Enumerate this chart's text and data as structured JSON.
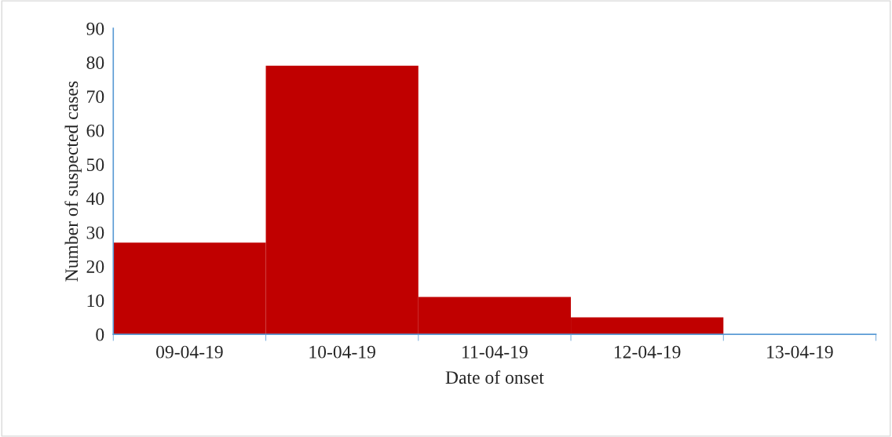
{
  "chart_data": {
    "type": "bar",
    "xlabel": "Date of onset",
    "ylabel": "Number of suspected cases",
    "categories": [
      "09-04-19",
      "10-04-19",
      "11-04-19",
      "12-04-19",
      "13-04-19"
    ],
    "values": [
      27,
      79,
      11,
      5,
      0
    ],
    "color": "#c00000",
    "ylim": [
      0,
      90
    ],
    "yticks": [
      0,
      10,
      20,
      30,
      40,
      50,
      60,
      70,
      80,
      90
    ],
    "grid": false,
    "legend": false
  }
}
